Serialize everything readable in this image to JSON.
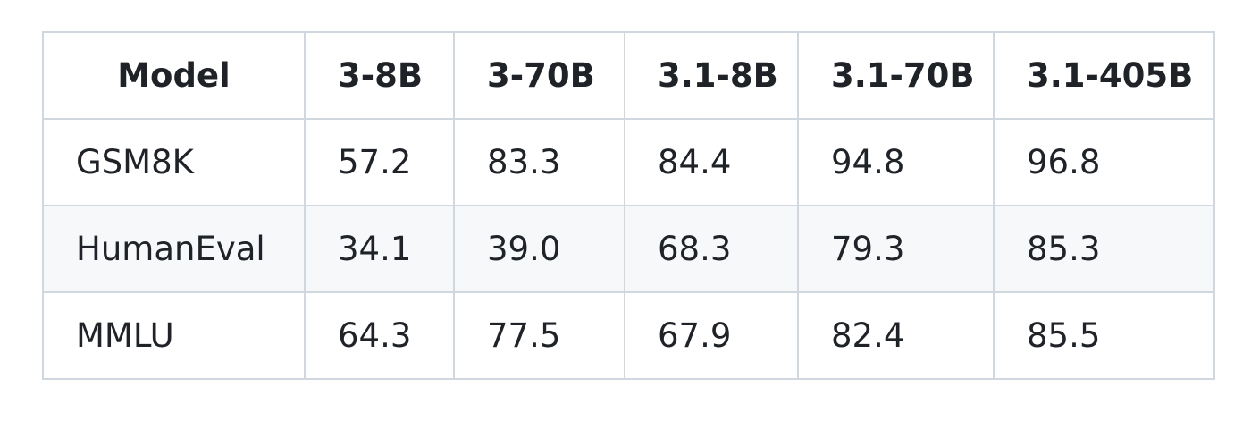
{
  "table": {
    "header": [
      "Model",
      "3-8B",
      "3-70B",
      "3.1-8B",
      "3.1-70B",
      "3.1-405B"
    ],
    "rows": [
      [
        "GSM8K",
        "57.2",
        "83.3",
        "84.4",
        "94.8",
        "96.8"
      ],
      [
        "HumanEval",
        "34.1",
        "39.0",
        "68.3",
        "79.3",
        "85.3"
      ],
      [
        "MMLU",
        "64.3",
        "77.5",
        "67.9",
        "82.4",
        "85.5"
      ]
    ]
  }
}
